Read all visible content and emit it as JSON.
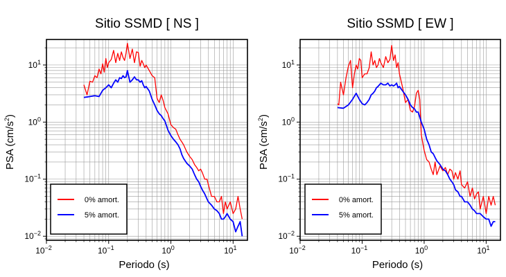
{
  "chart_data": [
    {
      "type": "line",
      "title": "Sitio SSMD [ NS ]",
      "xlabel": "Periodo (s)",
      "ylabel": "PSA (cm/s",
      "ylabel_sup": "2",
      "ylabel_end": ")",
      "x_scale": "log",
      "y_scale": "log",
      "xlim": [
        0.01,
        17
      ],
      "ylim": [
        0.0085,
        28
      ],
      "x_ticks": [
        {
          "value": 0.01,
          "base": "10",
          "exp": "−2"
        },
        {
          "value": 0.1,
          "base": "10",
          "exp": "−1"
        },
        {
          "value": 1,
          "base": "10",
          "exp": "0"
        },
        {
          "value": 10,
          "base": "10",
          "exp": "1"
        }
      ],
      "y_ticks": [
        {
          "value": 0.01,
          "base": "10",
          "exp": "−2"
        },
        {
          "value": 0.1,
          "base": "10",
          "exp": "−1"
        },
        {
          "value": 1,
          "base": "10",
          "exp": "0"
        },
        {
          "value": 10,
          "base": "10",
          "exp": "1"
        }
      ],
      "grid": true,
      "legend_position": "bottom-left",
      "series": [
        {
          "name": "0% amort.",
          "color": "#ff0000",
          "x": [
            0.04,
            0.045,
            0.05,
            0.055,
            0.06,
            0.065,
            0.07,
            0.075,
            0.08,
            0.085,
            0.09,
            0.095,
            0.1,
            0.11,
            0.12,
            0.13,
            0.14,
            0.15,
            0.16,
            0.17,
            0.18,
            0.19,
            0.2,
            0.22,
            0.24,
            0.26,
            0.28,
            0.3,
            0.32,
            0.34,
            0.36,
            0.38,
            0.4,
            0.45,
            0.5,
            0.55,
            0.6,
            0.65,
            0.7,
            0.75,
            0.8,
            0.9,
            1.0,
            1.1,
            1.2,
            1.3,
            1.4,
            1.5,
            1.6,
            1.8,
            2.0,
            2.2,
            2.4,
            2.6,
            2.8,
            3.0,
            3.2,
            3.5,
            3.8,
            4.0,
            4.5,
            5.0,
            5.5,
            6.0,
            6.5,
            7.0,
            7.5,
            8.0,
            9.0,
            10.0,
            11.0,
            12.0,
            13.0,
            14.0
          ],
          "y": [
            4.5,
            3.0,
            5.2,
            5.0,
            6.5,
            6.0,
            8.5,
            7.0,
            10.5,
            7.5,
            13.0,
            9.0,
            11.0,
            12.5,
            18.0,
            11.0,
            16.0,
            12.0,
            17.0,
            13.5,
            12.0,
            16.0,
            24.0,
            13.0,
            19.0,
            11.0,
            17.0,
            16.5,
            9.5,
            12.0,
            10.5,
            9.0,
            10.0,
            8.0,
            6.5,
            6.0,
            2.6,
            2.2,
            3.0,
            2.4,
            1.8,
            1.4,
            0.9,
            0.8,
            0.75,
            0.6,
            0.5,
            0.45,
            0.4,
            0.3,
            0.25,
            0.22,
            0.18,
            0.16,
            0.14,
            0.15,
            0.13,
            0.1,
            0.1,
            0.08,
            0.05,
            0.05,
            0.04,
            0.04,
            0.05,
            0.025,
            0.04,
            0.03,
            0.04,
            0.025,
            0.03,
            0.05,
            0.03,
            0.02
          ]
        },
        {
          "name": "5% amort.",
          "color": "#0000ff",
          "x": [
            0.04,
            0.05,
            0.06,
            0.07,
            0.08,
            0.09,
            0.1,
            0.11,
            0.12,
            0.13,
            0.14,
            0.15,
            0.16,
            0.17,
            0.18,
            0.19,
            0.2,
            0.22,
            0.24,
            0.26,
            0.28,
            0.3,
            0.32,
            0.34,
            0.36,
            0.38,
            0.4,
            0.45,
            0.5,
            0.55,
            0.6,
            0.65,
            0.7,
            0.75,
            0.8,
            0.9,
            1.0,
            1.1,
            1.2,
            1.3,
            1.4,
            1.5,
            1.6,
            1.8,
            2.0,
            2.2,
            2.4,
            2.6,
            2.8,
            3.0,
            3.2,
            3.5,
            3.8,
            4.0,
            4.5,
            5.0,
            5.5,
            6.0,
            6.5,
            7.0,
            7.5,
            8.0,
            9.0,
            10.0,
            11.0,
            12.0,
            13.0,
            14.0
          ],
          "y": [
            2.7,
            2.8,
            2.9,
            2.8,
            3.6,
            4.0,
            4.5,
            4.0,
            4.8,
            5.5,
            5.0,
            6.0,
            5.8,
            6.5,
            6.0,
            6.2,
            8.0,
            5.0,
            5.5,
            6.2,
            5.5,
            5.5,
            5.0,
            5.3,
            4.5,
            4.0,
            4.2,
            3.5,
            2.5,
            2.0,
            1.6,
            1.4,
            1.3,
            1.15,
            1.05,
            0.72,
            0.58,
            0.5,
            0.45,
            0.4,
            0.34,
            0.27,
            0.23,
            0.19,
            0.17,
            0.15,
            0.12,
            0.1,
            0.09,
            0.075,
            0.065,
            0.055,
            0.045,
            0.04,
            0.035,
            0.03,
            0.028,
            0.025,
            0.02,
            0.02,
            0.022,
            0.025,
            0.02,
            0.018,
            0.012,
            0.015,
            0.018,
            0.01
          ]
        }
      ]
    },
    {
      "type": "line",
      "title": "Sitio SSMD [ EW ]",
      "xlabel": "Periodo (s)",
      "ylabel": "PSA (cm/s",
      "ylabel_sup": "2",
      "ylabel_end": ")",
      "x_scale": "log",
      "y_scale": "log",
      "xlim": [
        0.01,
        17
      ],
      "ylim": [
        0.0085,
        28
      ],
      "x_ticks": [
        {
          "value": 0.01,
          "base": "10",
          "exp": "−2"
        },
        {
          "value": 0.1,
          "base": "10",
          "exp": "−1"
        },
        {
          "value": 1,
          "base": "10",
          "exp": "0"
        },
        {
          "value": 10,
          "base": "10",
          "exp": "1"
        }
      ],
      "y_ticks": [
        {
          "value": 0.01,
          "base": "10",
          "exp": "−2"
        },
        {
          "value": 0.1,
          "base": "10",
          "exp": "−1"
        },
        {
          "value": 1,
          "base": "10",
          "exp": "0"
        },
        {
          "value": 10,
          "base": "10",
          "exp": "1"
        }
      ],
      "grid": true,
      "legend_position": "bottom-left",
      "series": [
        {
          "name": "0% amort.",
          "color": "#ff0000",
          "x": [
            0.04,
            0.042,
            0.045,
            0.05,
            0.055,
            0.06,
            0.065,
            0.07,
            0.075,
            0.08,
            0.085,
            0.09,
            0.095,
            0.1,
            0.11,
            0.12,
            0.13,
            0.14,
            0.15,
            0.16,
            0.17,
            0.18,
            0.19,
            0.2,
            0.22,
            0.24,
            0.26,
            0.28,
            0.3,
            0.32,
            0.34,
            0.36,
            0.38,
            0.4,
            0.45,
            0.5,
            0.55,
            0.6,
            0.65,
            0.7,
            0.75,
            0.8,
            0.85,
            0.9,
            1.0,
            1.1,
            1.2,
            1.3,
            1.4,
            1.5,
            1.6,
            1.8,
            2.0,
            2.2,
            2.4,
            2.6,
            2.8,
            3.0,
            3.2,
            3.5,
            3.8,
            4.0,
            4.5,
            5.0,
            5.5,
            6.0,
            6.5,
            7.0,
            7.5,
            8.0,
            9.0,
            10.0,
            11.0,
            12.0,
            13.0,
            14.0
          ],
          "y": [
            2.1,
            2.0,
            5.0,
            3.0,
            6.0,
            9.5,
            12.0,
            4.0,
            7.0,
            10.0,
            8.5,
            13.0,
            12.0,
            6.0,
            7.0,
            7.0,
            9.0,
            17.0,
            10.0,
            12.0,
            9.0,
            10.0,
            13.0,
            11.0,
            9.0,
            14.0,
            11.0,
            12.5,
            22.0,
            12.0,
            15.0,
            9.0,
            11.0,
            7.0,
            4.0,
            2.2,
            2.5,
            1.6,
            1.5,
            1.9,
            3.2,
            3.6,
            2.5,
            0.6,
            0.32,
            0.22,
            0.2,
            0.15,
            0.12,
            0.2,
            0.12,
            0.17,
            0.14,
            0.16,
            0.12,
            0.15,
            0.14,
            0.1,
            0.13,
            0.1,
            0.14,
            0.08,
            0.07,
            0.09,
            0.05,
            0.07,
            0.045,
            0.055,
            0.06,
            0.03,
            0.05,
            0.025,
            0.05,
            0.035,
            0.05,
            0.035
          ]
        },
        {
          "name": "5% amort.",
          "color": "#0000ff",
          "x": [
            0.04,
            0.05,
            0.06,
            0.07,
            0.08,
            0.09,
            0.1,
            0.11,
            0.12,
            0.13,
            0.14,
            0.15,
            0.16,
            0.17,
            0.18,
            0.19,
            0.2,
            0.22,
            0.24,
            0.26,
            0.28,
            0.3,
            0.32,
            0.34,
            0.36,
            0.38,
            0.4,
            0.45,
            0.5,
            0.55,
            0.6,
            0.65,
            0.7,
            0.75,
            0.8,
            0.9,
            1.0,
            1.1,
            1.2,
            1.3,
            1.4,
            1.5,
            1.6,
            1.8,
            2.0,
            2.2,
            2.4,
            2.6,
            2.8,
            3.0,
            3.2,
            3.5,
            3.8,
            4.0,
            4.5,
            5.0,
            5.5,
            6.0,
            6.5,
            7.0,
            7.5,
            8.0,
            9.0,
            10.0,
            11.0,
            12.0,
            13.0,
            14.0
          ],
          "y": [
            1.8,
            1.75,
            2.0,
            2.5,
            3.2,
            2.5,
            2.1,
            2.0,
            2.2,
            2.5,
            3.0,
            3.2,
            3.5,
            4.0,
            4.2,
            4.5,
            4.8,
            4.5,
            4.5,
            4.8,
            4.3,
            4.5,
            4.3,
            4.5,
            4.8,
            4.0,
            4.2,
            3.5,
            3.0,
            2.5,
            2.0,
            1.8,
            1.7,
            1.5,
            1.5,
            1.0,
            0.75,
            0.5,
            0.4,
            0.3,
            0.28,
            0.24,
            0.21,
            0.18,
            0.15,
            0.14,
            0.12,
            0.1,
            0.09,
            0.08,
            0.065,
            0.06,
            0.05,
            0.05,
            0.04,
            0.04,
            0.035,
            0.03,
            0.028,
            0.025,
            0.025,
            0.025,
            0.022,
            0.02,
            0.02,
            0.015,
            0.018,
            0.018
          ]
        }
      ]
    }
  ]
}
